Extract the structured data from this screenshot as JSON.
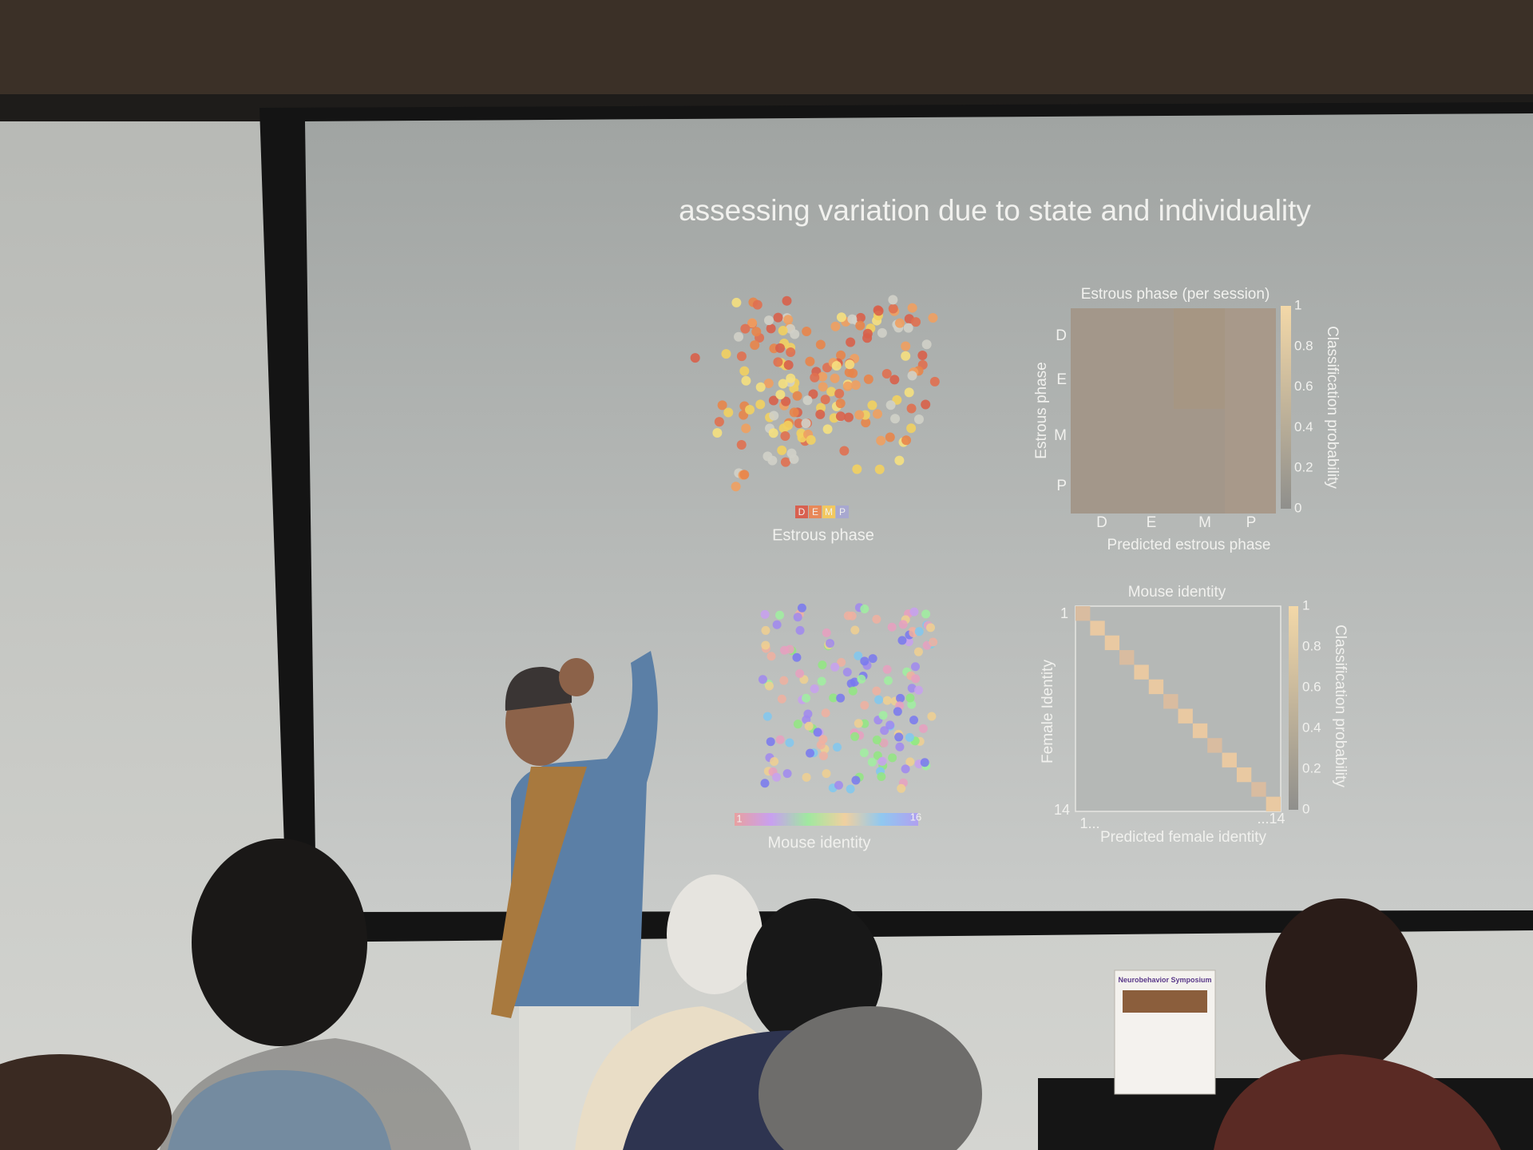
{
  "slide": {
    "title": "assessing variation due to state and individuality",
    "panels": [
      {
        "label": "Estrous phase",
        "legend": [
          "D",
          "E",
          "M",
          "P"
        ]
      },
      {
        "title": "Estrous phase (per session)",
        "x_label": "Predicted estrous phase",
        "y_label": "Estrous phase",
        "x_ticks": [
          "D",
          "E",
          "M",
          "P"
        ],
        "y_ticks": [
          "D",
          "E",
          "M",
          "P"
        ],
        "colorbar_label": "Classification probability",
        "colorbar_ticks": [
          1,
          0.8,
          0.6,
          0.4,
          0.2,
          0
        ]
      },
      {
        "label": "Mouse identity",
        "colorbar_ends": [
          "1",
          "16"
        ]
      },
      {
        "title": "Mouse identity",
        "x_label": "Predicted female identity",
        "y_label": "Female Identity",
        "x_ticks": [
          "1...",
          "...14"
        ],
        "y_ticks": [
          "1",
          "14"
        ],
        "colorbar_label": "Classification probability",
        "colorbar_ticks": [
          1,
          0.8,
          0.6,
          0.4,
          0.2,
          0
        ]
      }
    ]
  },
  "poster": {
    "title": "Neurobehavior Symposium"
  }
}
